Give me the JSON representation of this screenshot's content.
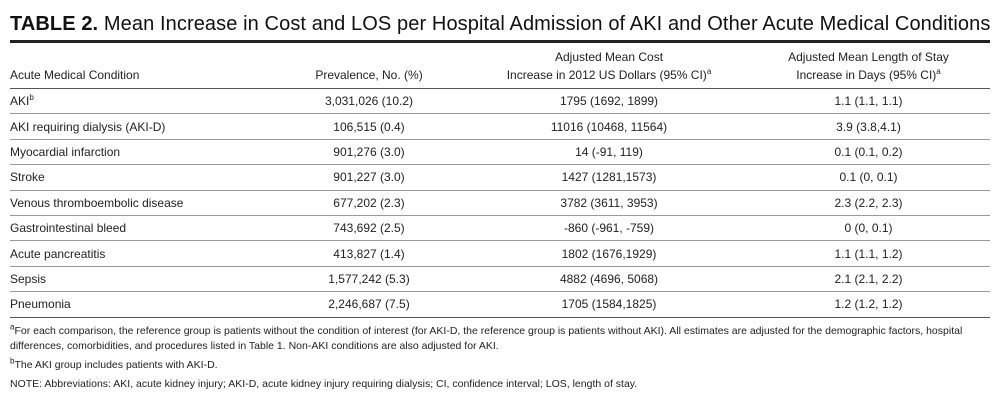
{
  "title": {
    "label": "TABLE 2.",
    "text": " Mean Increase in Cost and LOS per Hospital Admission of AKI and Other Acute Medical Conditions"
  },
  "table": {
    "headers": {
      "condition": "Acute Medical Condition",
      "prevalence": "Prevalence, No. (%)",
      "cost_line1": "Adjusted Mean Cost",
      "cost_line2": "Increase in 2012 US Dollars (95% CI)",
      "cost_sup": "a",
      "los_line1": "Adjusted Mean Length of Stay",
      "los_line2": "Increase in Days (95% CI)",
      "los_sup": "a"
    },
    "rows": [
      {
        "condition": "AKI",
        "sup": "b",
        "prevalence": "3,031,026 (10.2)",
        "cost": "1795 (1692, 1899)",
        "los": "1.1 (1.1, 1.1)"
      },
      {
        "condition": "AKI requiring dialysis (AKI-D)",
        "sup": "",
        "prevalence": "106,515 (0.4)",
        "cost": "11016 (10468, 11564)",
        "los": "3.9 (3.8,4.1)"
      },
      {
        "condition": "Myocardial infarction",
        "sup": "",
        "prevalence": "901,276 (3.0)",
        "cost": "14 (-91, 119)",
        "los": "0.1 (0.1, 0.2)"
      },
      {
        "condition": "Stroke",
        "sup": "",
        "prevalence": "901,227 (3.0)",
        "cost": "1427 (1281,1573)",
        "los": "0.1 (0, 0.1)"
      },
      {
        "condition": "Venous thromboembolic disease",
        "sup": "",
        "prevalence": "677,202 (2.3)",
        "cost": "3782 (3611, 3953)",
        "los": "2.3 (2.2, 2.3)"
      },
      {
        "condition": "Gastrointestinal bleed",
        "sup": "",
        "prevalence": "743,692 (2.5)",
        "cost": "-860 (-961, -759)",
        "los": "0 (0, 0.1)"
      },
      {
        "condition": "Acute pancreatitis",
        "sup": "",
        "prevalence": "413,827 (1.4)",
        "cost": "1802 (1676,1929)",
        "los": "1.1 (1.1, 1.2)"
      },
      {
        "condition": "Sepsis",
        "sup": "",
        "prevalence": "1,577,242 (5.3)",
        "cost": "4882 (4696, 5068)",
        "los": "2.1 (2.1, 2.2)"
      },
      {
        "condition": "Pneumonia",
        "sup": "",
        "prevalence": "2,246,687 (7.5)",
        "cost": "1705 (1584,1825)",
        "los": "1.2 (1.2, 1.2)"
      }
    ]
  },
  "notes": {
    "a_mark": "a",
    "a_text": "For each comparison, the reference group is patients without the condition of interest (for AKI-D, the reference group is patients without AKI). All estimates are adjusted for the demographic factors, hospital differences, comorbidities, and procedures listed in Table 1. Non-AKI conditions are also adjusted for AKI.",
    "b_mark": "b",
    "b_text": "The AKI group includes patients with AKI-D.",
    "note_text": "NOTE: Abbreviations: AKI, acute kidney injury; AKI-D, acute kidney injury requiring dialysis; CI, confidence interval; LOS, length of stay."
  }
}
